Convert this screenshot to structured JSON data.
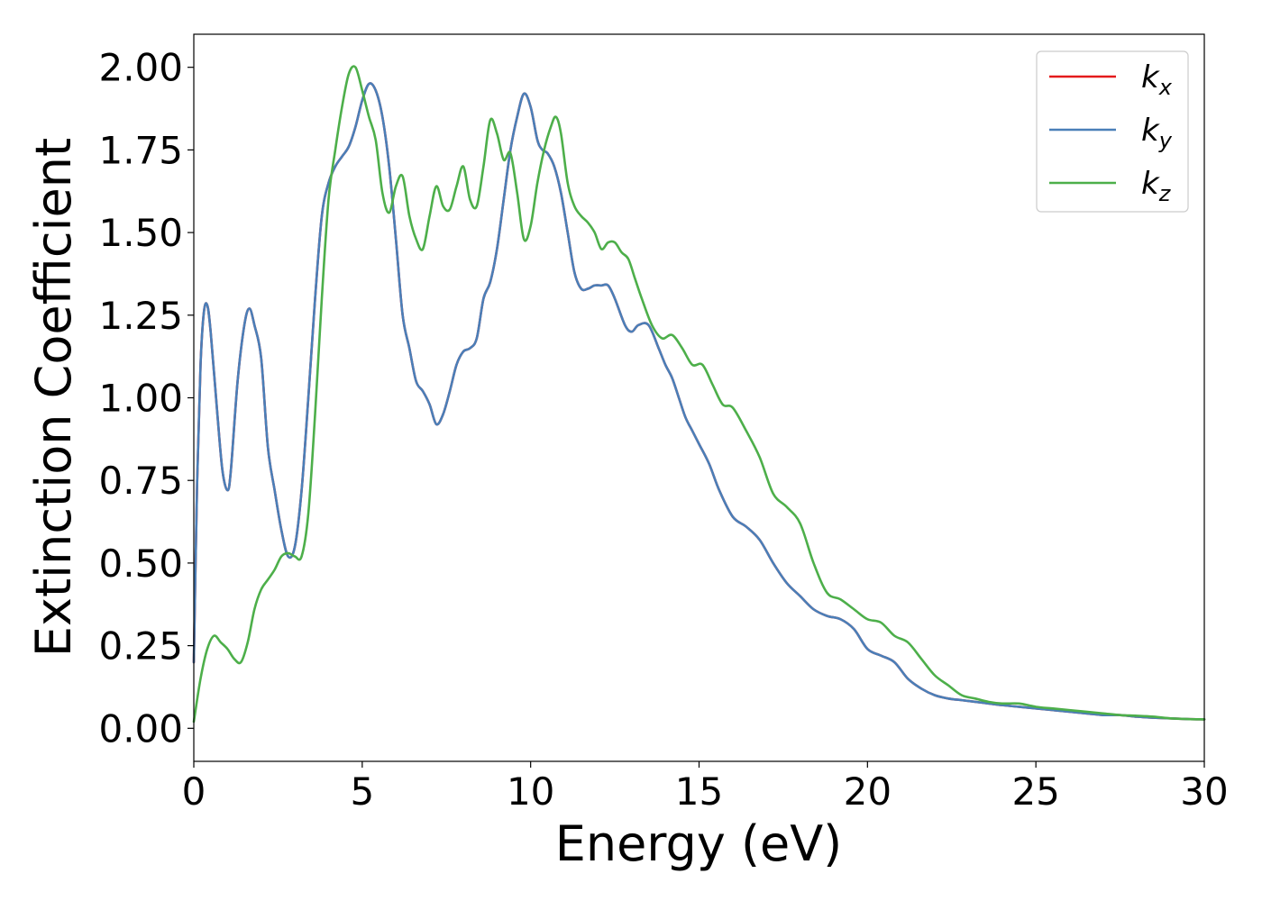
{
  "chart_data": {
    "type": "line",
    "title": "",
    "xlabel": "Energy (eV)",
    "ylabel": "Extinction Coefficient",
    "xlim": [
      0,
      30
    ],
    "ylim": [
      -0.1,
      2.1
    ],
    "xticks": [
      0,
      5,
      10,
      15,
      20,
      25,
      30
    ],
    "xtick_labels": [
      "0",
      "5",
      "10",
      "15",
      "20",
      "25",
      "30"
    ],
    "yticks": [
      0,
      0.25,
      0.5,
      0.75,
      1.0,
      1.25,
      1.5,
      1.75,
      2.0
    ],
    "ytick_labels": [
      "0.00",
      "0.25",
      "0.50",
      "0.75",
      "1.00",
      "1.25",
      "1.50",
      "1.75",
      "2.00"
    ],
    "grid": false,
    "legend_position": "top-right",
    "series": [
      {
        "name": "kx",
        "label_main": "k",
        "label_sub": "x",
        "color": "#e41a1c",
        "x": [
          0,
          0.1,
          0.2,
          0.3,
          0.4,
          0.5,
          0.7,
          0.85,
          1.0,
          1.1,
          1.3,
          1.5,
          1.65,
          1.8,
          2.0,
          2.2,
          2.4,
          2.6,
          2.8,
          3.0,
          3.2,
          3.4,
          3.6,
          3.8,
          4.0,
          4.2,
          4.4,
          4.6,
          4.8,
          5.0,
          5.2,
          5.4,
          5.6,
          5.8,
          6.0,
          6.2,
          6.4,
          6.6,
          6.8,
          7.0,
          7.2,
          7.4,
          7.6,
          7.8,
          8.0,
          8.2,
          8.4,
          8.6,
          8.8,
          9.0,
          9.2,
          9.4,
          9.6,
          9.8,
          10.0,
          10.2,
          10.35,
          10.5,
          10.7,
          10.9,
          11.1,
          11.3,
          11.5,
          11.7,
          11.9,
          12.1,
          12.3,
          12.5,
          12.8,
          13.0,
          13.2,
          13.5,
          13.8,
          14.0,
          14.2,
          14.4,
          14.6,
          14.8,
          15.0,
          15.3,
          15.6,
          16.0,
          16.4,
          16.8,
          17.2,
          17.6,
          18.0,
          18.4,
          18.8,
          19.2,
          19.6,
          20.0,
          20.4,
          20.8,
          21.2,
          21.6,
          22.0,
          22.4,
          22.8,
          23.2,
          23.6,
          24.0,
          24.5,
          25.0,
          25.5,
          26.0,
          26.5,
          27.0,
          27.5,
          28.0,
          28.5,
          29.0,
          29.5,
          30.0
        ],
        "y": [
          0.2,
          0.75,
          1.1,
          1.26,
          1.28,
          1.2,
          0.95,
          0.78,
          0.72,
          0.78,
          1.05,
          1.22,
          1.27,
          1.22,
          1.12,
          0.85,
          0.72,
          0.6,
          0.52,
          0.55,
          0.72,
          1.0,
          1.3,
          1.55,
          1.65,
          1.7,
          1.73,
          1.76,
          1.82,
          1.9,
          1.95,
          1.93,
          1.85,
          1.7,
          1.48,
          1.25,
          1.15,
          1.05,
          1.02,
          0.98,
          0.92,
          0.95,
          1.02,
          1.1,
          1.14,
          1.15,
          1.18,
          1.3,
          1.35,
          1.45,
          1.6,
          1.75,
          1.85,
          1.92,
          1.88,
          1.78,
          1.75,
          1.74,
          1.7,
          1.62,
          1.5,
          1.38,
          1.33,
          1.33,
          1.34,
          1.34,
          1.34,
          1.3,
          1.22,
          1.2,
          1.22,
          1.22,
          1.15,
          1.1,
          1.06,
          1.0,
          0.94,
          0.9,
          0.86,
          0.8,
          0.72,
          0.64,
          0.61,
          0.57,
          0.5,
          0.44,
          0.4,
          0.36,
          0.34,
          0.33,
          0.3,
          0.24,
          0.22,
          0.2,
          0.15,
          0.12,
          0.1,
          0.09,
          0.085,
          0.08,
          0.075,
          0.07,
          0.065,
          0.06,
          0.055,
          0.05,
          0.045,
          0.04,
          0.04,
          0.035,
          0.032,
          0.03,
          0.028,
          0.027
        ]
      },
      {
        "name": "ky",
        "label_main": "k",
        "label_sub": "y",
        "color": "#4a7fb8",
        "x": [
          0,
          0.1,
          0.2,
          0.3,
          0.4,
          0.5,
          0.7,
          0.85,
          1.0,
          1.1,
          1.3,
          1.5,
          1.65,
          1.8,
          2.0,
          2.2,
          2.4,
          2.6,
          2.8,
          3.0,
          3.2,
          3.4,
          3.6,
          3.8,
          4.0,
          4.2,
          4.4,
          4.6,
          4.8,
          5.0,
          5.2,
          5.4,
          5.6,
          5.8,
          6.0,
          6.2,
          6.4,
          6.6,
          6.8,
          7.0,
          7.2,
          7.4,
          7.6,
          7.8,
          8.0,
          8.2,
          8.4,
          8.6,
          8.8,
          9.0,
          9.2,
          9.4,
          9.6,
          9.8,
          10.0,
          10.2,
          10.35,
          10.5,
          10.7,
          10.9,
          11.1,
          11.3,
          11.5,
          11.7,
          11.9,
          12.1,
          12.3,
          12.5,
          12.8,
          13.0,
          13.2,
          13.5,
          13.8,
          14.0,
          14.2,
          14.4,
          14.6,
          14.8,
          15.0,
          15.3,
          15.6,
          16.0,
          16.4,
          16.8,
          17.2,
          17.6,
          18.0,
          18.4,
          18.8,
          19.2,
          19.6,
          20.0,
          20.4,
          20.8,
          21.2,
          21.6,
          22.0,
          22.4,
          22.8,
          23.2,
          23.6,
          24.0,
          24.5,
          25.0,
          25.5,
          26.0,
          26.5,
          27.0,
          27.5,
          28.0,
          28.5,
          29.0,
          29.5,
          30.0
        ],
        "y": [
          0.2,
          0.75,
          1.1,
          1.26,
          1.28,
          1.2,
          0.95,
          0.78,
          0.72,
          0.78,
          1.05,
          1.22,
          1.27,
          1.22,
          1.12,
          0.85,
          0.72,
          0.6,
          0.52,
          0.55,
          0.72,
          1.0,
          1.3,
          1.55,
          1.65,
          1.7,
          1.73,
          1.76,
          1.82,
          1.9,
          1.95,
          1.93,
          1.85,
          1.7,
          1.48,
          1.25,
          1.15,
          1.05,
          1.02,
          0.98,
          0.92,
          0.95,
          1.02,
          1.1,
          1.14,
          1.15,
          1.18,
          1.3,
          1.35,
          1.45,
          1.6,
          1.75,
          1.85,
          1.92,
          1.88,
          1.78,
          1.75,
          1.74,
          1.7,
          1.62,
          1.5,
          1.38,
          1.33,
          1.33,
          1.34,
          1.34,
          1.34,
          1.3,
          1.22,
          1.2,
          1.22,
          1.22,
          1.15,
          1.1,
          1.06,
          1.0,
          0.94,
          0.9,
          0.86,
          0.8,
          0.72,
          0.64,
          0.61,
          0.57,
          0.5,
          0.44,
          0.4,
          0.36,
          0.34,
          0.33,
          0.3,
          0.24,
          0.22,
          0.2,
          0.15,
          0.12,
          0.1,
          0.09,
          0.085,
          0.08,
          0.075,
          0.07,
          0.065,
          0.06,
          0.055,
          0.05,
          0.045,
          0.04,
          0.04,
          0.035,
          0.032,
          0.03,
          0.028,
          0.027
        ]
      },
      {
        "name": "kz",
        "label_main": "k",
        "label_sub": "z",
        "color": "#4daf4a",
        "x": [
          0,
          0.2,
          0.4,
          0.6,
          0.8,
          1.0,
          1.2,
          1.4,
          1.6,
          1.8,
          2.0,
          2.2,
          2.4,
          2.6,
          2.8,
          3.0,
          3.2,
          3.4,
          3.6,
          3.8,
          4.0,
          4.2,
          4.4,
          4.6,
          4.8,
          5.0,
          5.2,
          5.4,
          5.6,
          5.8,
          6.0,
          6.2,
          6.4,
          6.6,
          6.8,
          7.0,
          7.2,
          7.4,
          7.6,
          7.8,
          8.0,
          8.2,
          8.4,
          8.6,
          8.8,
          9.0,
          9.2,
          9.4,
          9.6,
          9.8,
          10.0,
          10.2,
          10.4,
          10.6,
          10.75,
          10.9,
          11.1,
          11.3,
          11.5,
          11.7,
          11.9,
          12.1,
          12.3,
          12.5,
          12.7,
          12.9,
          13.1,
          13.3,
          13.6,
          13.9,
          14.2,
          14.5,
          14.8,
          15.1,
          15.4,
          15.7,
          16.0,
          16.4,
          16.8,
          17.2,
          17.6,
          18.0,
          18.4,
          18.8,
          19.2,
          19.6,
          20.0,
          20.4,
          20.8,
          21.2,
          21.6,
          22.0,
          22.4,
          22.8,
          23.2,
          23.6,
          24.0,
          24.5,
          25.0,
          25.5,
          26.0,
          26.5,
          27.0,
          27.5,
          28.0,
          28.5,
          29.0,
          29.5,
          30.0
        ],
        "y": [
          0.02,
          0.15,
          0.24,
          0.28,
          0.26,
          0.24,
          0.21,
          0.2,
          0.26,
          0.36,
          0.42,
          0.45,
          0.48,
          0.52,
          0.53,
          0.52,
          0.52,
          0.65,
          0.95,
          1.3,
          1.6,
          1.75,
          1.88,
          1.98,
          2.0,
          1.93,
          1.85,
          1.78,
          1.62,
          1.56,
          1.64,
          1.67,
          1.55,
          1.48,
          1.45,
          1.55,
          1.64,
          1.58,
          1.57,
          1.64,
          1.7,
          1.6,
          1.58,
          1.7,
          1.84,
          1.8,
          1.72,
          1.74,
          1.62,
          1.48,
          1.52,
          1.65,
          1.75,
          1.82,
          1.85,
          1.8,
          1.65,
          1.58,
          1.55,
          1.53,
          1.5,
          1.45,
          1.47,
          1.47,
          1.44,
          1.42,
          1.36,
          1.3,
          1.22,
          1.18,
          1.19,
          1.15,
          1.1,
          1.1,
          1.04,
          0.98,
          0.97,
          0.9,
          0.82,
          0.71,
          0.67,
          0.62,
          0.5,
          0.41,
          0.39,
          0.36,
          0.33,
          0.32,
          0.28,
          0.26,
          0.21,
          0.16,
          0.13,
          0.1,
          0.09,
          0.08,
          0.075,
          0.075,
          0.065,
          0.06,
          0.055,
          0.05,
          0.045,
          0.04,
          0.038,
          0.035,
          0.03,
          0.028,
          0.027
        ]
      }
    ]
  }
}
